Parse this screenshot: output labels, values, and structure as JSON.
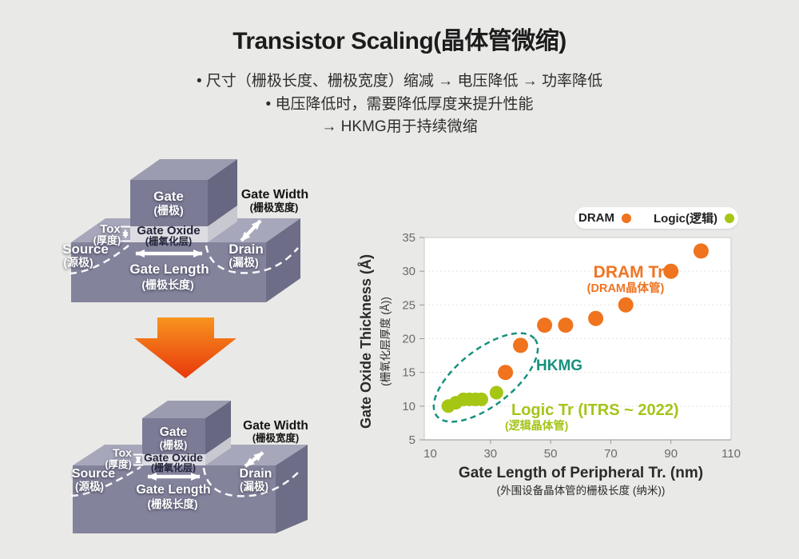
{
  "header": {
    "title": "Transistor Scaling(晶体管微缩)",
    "bullet1": "• 尺寸（栅极长度、栅极宽度）缩减 → 电压降低 → 功率降低",
    "bullet2": "• 电压降低时，需要降低厚度来提升性能",
    "bullet3": "→ HKMG用于持续微缩"
  },
  "diagram": {
    "gate": "Gate",
    "gate_cn": "(栅极)",
    "gate_width": "Gate Width",
    "gate_width_cn": "(栅极宽度)",
    "tox": "Tox",
    "tox_cn": "(厚度)",
    "gate_oxide": "Gate Oxide",
    "gate_oxide_cn": "(栅氧化层)",
    "source": "Source",
    "source_cn": "(源极)",
    "drain": "Drain",
    "drain_cn": "(漏极)",
    "gate_length": "Gate Length",
    "gate_length_cn": "(栅极长度)"
  },
  "legend": {
    "dram": "DRAM",
    "logic": "Logic(逻辑)"
  },
  "colors": {
    "dram_orange": "#F0731E",
    "logic_green": "#A5C613",
    "hkmg_teal": "#17917E",
    "arrow_gradient_top": "#F7941D",
    "arrow_gradient_bottom": "#E8380D"
  },
  "chart_data": {
    "type": "scatter",
    "xlabel": "Gate Length of Peripheral Tr. (nm)",
    "xlabel_cn": "(外围设备晶体管的栅极长度 (纳米))",
    "ylabel": "Gate Oxide Thickness (Å)",
    "ylabel_cn": "(栅氧化层厚度 (Å))",
    "xlim": [
      8,
      110
    ],
    "ylim": [
      5,
      35
    ],
    "x_ticks": [
      10,
      30,
      50,
      70,
      90,
      110
    ],
    "y_ticks": [
      5,
      10,
      15,
      20,
      25,
      30,
      35
    ],
    "grid": "horizontal-dashed",
    "legend_position": "top-right",
    "series": [
      {
        "name": "DRAM",
        "color": "#F0731E",
        "marker_r": 9.5,
        "points": [
          [
            35,
            15
          ],
          [
            40,
            19
          ],
          [
            48,
            22
          ],
          [
            55,
            22
          ],
          [
            65,
            23
          ],
          [
            75,
            25
          ],
          [
            90,
            30
          ],
          [
            100,
            33
          ]
        ]
      },
      {
        "name": "Logic(逻辑)",
        "color": "#A5C613",
        "marker_r": 8.5,
        "points": [
          [
            16,
            10
          ],
          [
            18.5,
            10.5
          ],
          [
            21,
            11
          ],
          [
            23,
            11
          ],
          [
            25,
            11
          ],
          [
            27,
            11
          ],
          [
            32,
            12
          ]
        ]
      }
    ],
    "annotations": {
      "dram": {
        "text": "DRAM Tr",
        "sub": "(DRAM晶体管)"
      },
      "hkmg": {
        "text": "HKMG"
      },
      "logic": {
        "text": "Logic Tr (ITRS ~ 2022)",
        "sub": "(逻辑晶体管)"
      }
    }
  }
}
